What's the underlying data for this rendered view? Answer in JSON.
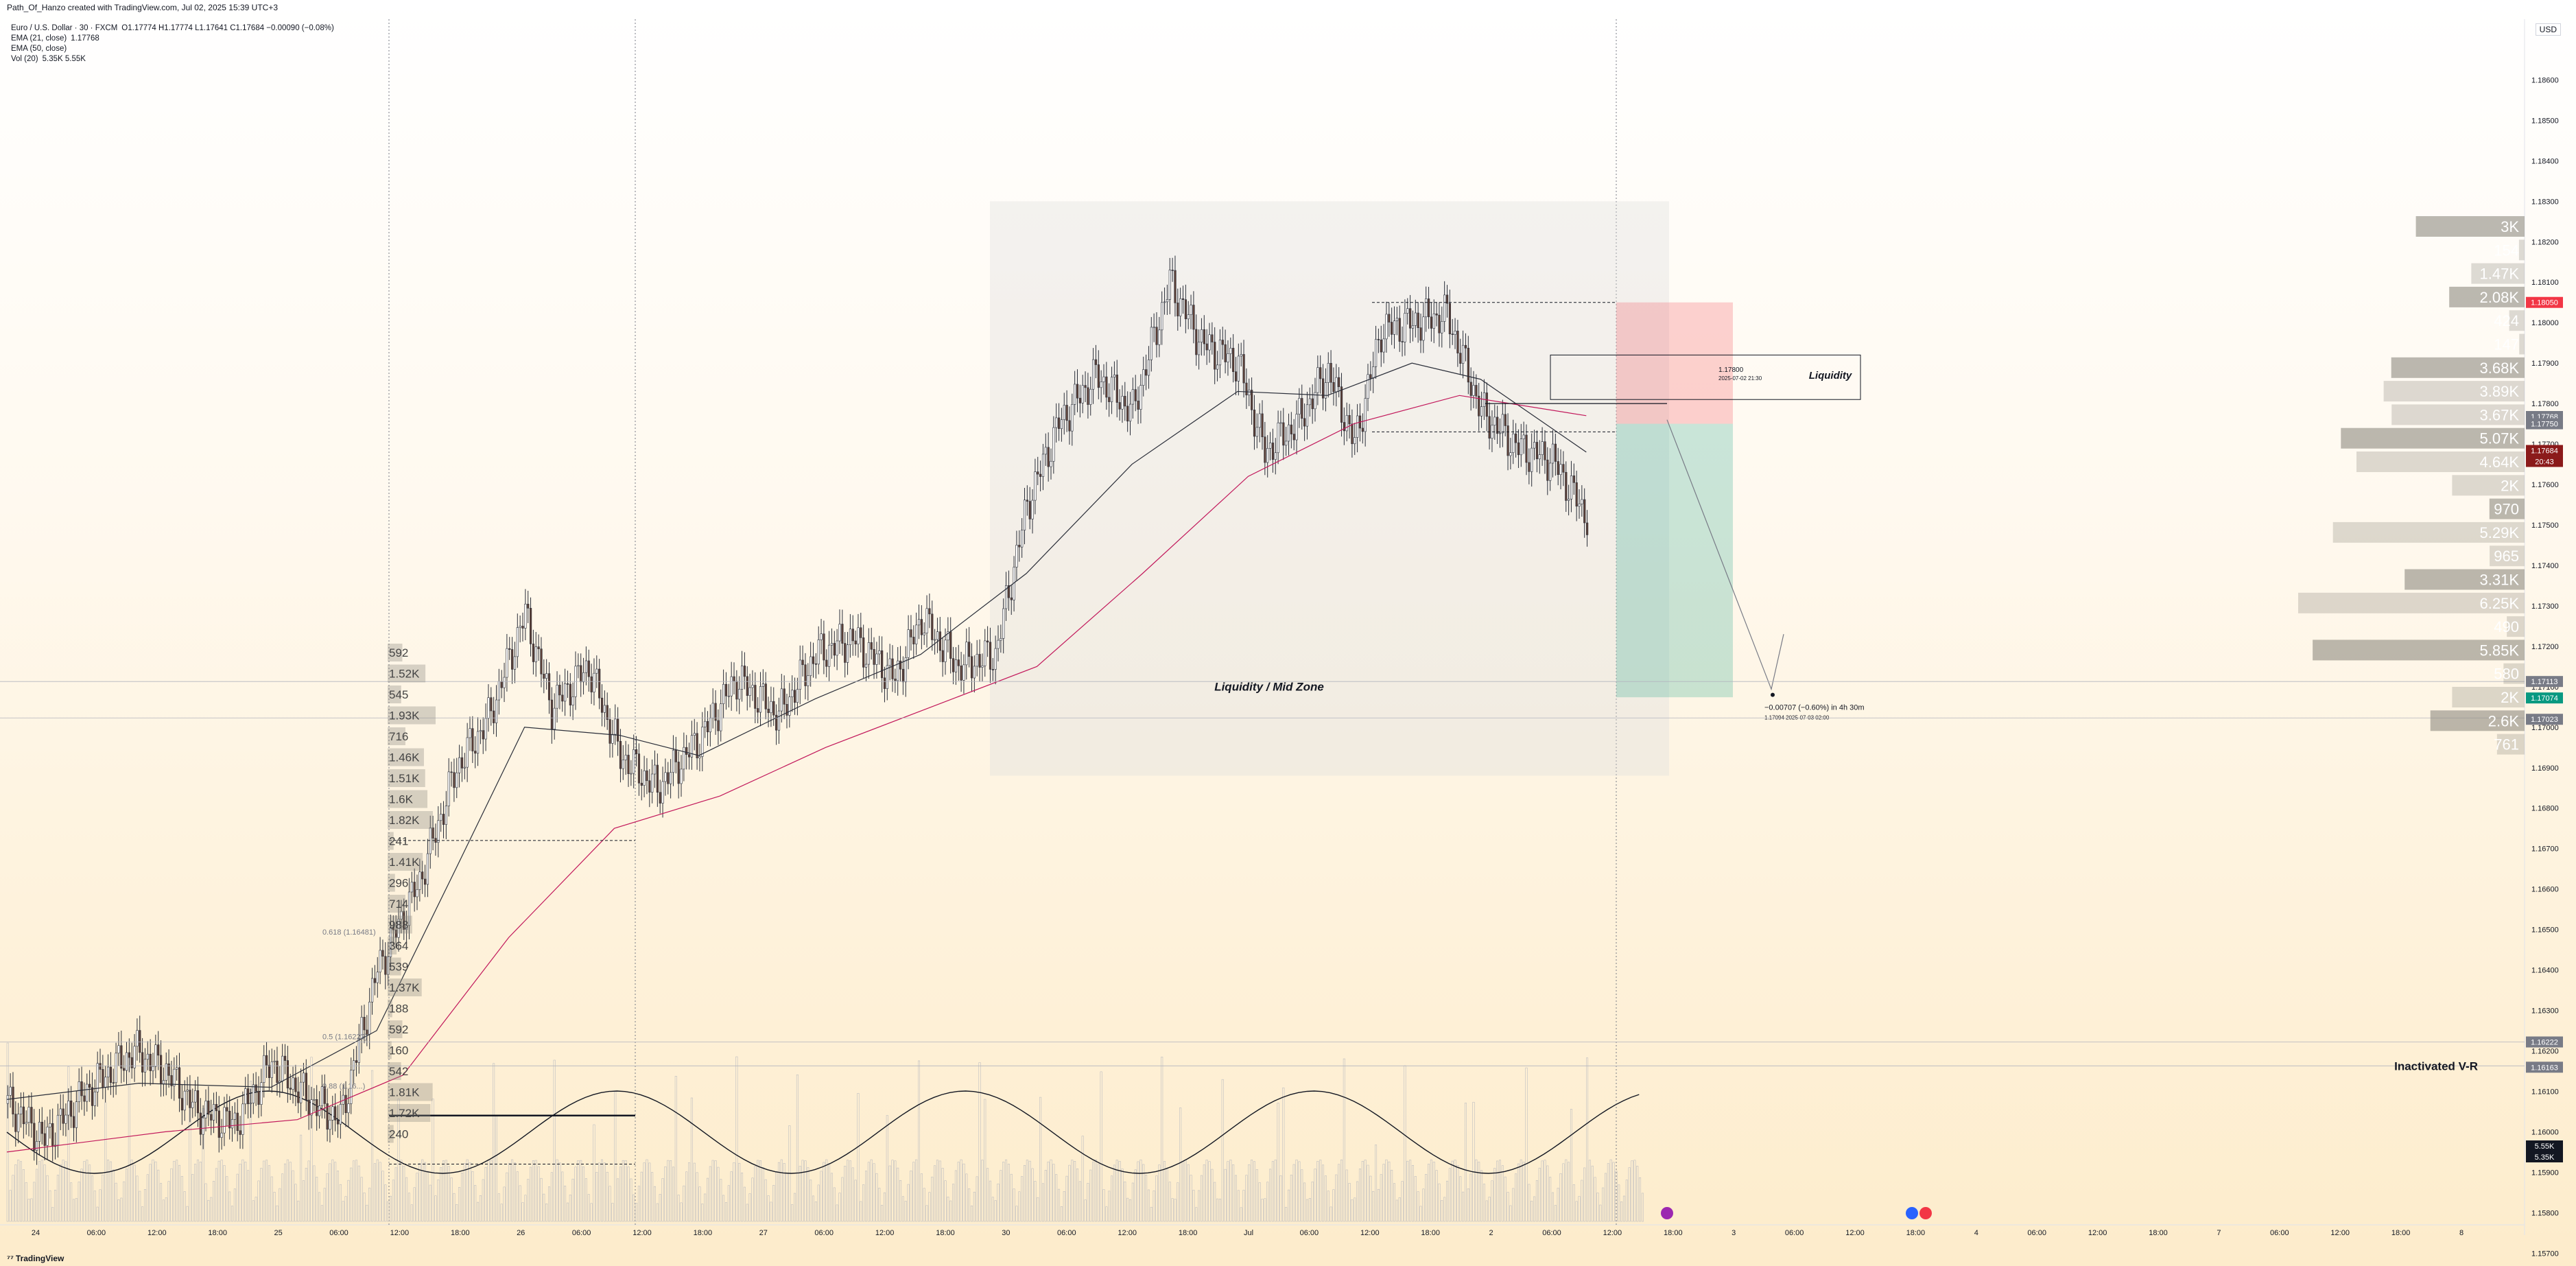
{
  "header": {
    "title": "Path_Of_Hanzo created with TradingView.com, Jul 02, 2025 15:39 UTC+3",
    "symbol": "Euro / U.S. Dollar · 30 · FXCM",
    "ohlc": "O1.17774 H1.17774 L1.17641 C1.17684 −0.00090 (−0.08%)",
    "ema21": "EMA (21, close)",
    "ema21_value": "1.17768",
    "ema50": "EMA (50, close)",
    "vol": "Vol (20)",
    "vol_value": "5.35K 5.55K",
    "currency": "USD",
    "brand": "TradingView"
  },
  "chart_data": {
    "type": "candlestick",
    "symbol": "EURUSD",
    "interval": "30",
    "ylim": [
      1.1577,
      1.1875
    ],
    "ylabels": [
      "1.18600",
      "1.18500",
      "1.18400",
      "1.18300",
      "1.18200",
      "1.18100",
      "1.18000",
      "1.17900",
      "1.17800",
      "1.17700",
      "1.17600",
      "1.17500",
      "1.17400",
      "1.17300",
      "1.17200",
      "1.17100",
      "1.17000",
      "1.16900",
      "1.16800",
      "1.16700",
      "1.16600",
      "1.16500",
      "1.16400",
      "1.16300",
      "1.16200",
      "1.16100",
      "1.16000",
      "1.15900",
      "1.15800",
      "1.15700"
    ],
    "xlabels": [
      "24",
      "06:00",
      "12:00",
      "18:00",
      "25",
      "06:00",
      "12:00",
      "18:00",
      "26",
      "06:00",
      "12:00",
      "18:00",
      "27",
      "06:00",
      "12:00",
      "18:00",
      "30",
      "06:00",
      "12:00",
      "18:00",
      "Jul",
      "06:00",
      "12:00",
      "18:00",
      "2",
      "06:00",
      "12:00",
      "18:00",
      "3",
      "06:00",
      "12:00",
      "18:00",
      "4",
      "06:00",
      "12:00",
      "18:00",
      "7",
      "06:00",
      "12:00",
      "18:00",
      "8"
    ],
    "price_path": [
      [
        0,
        1.1607
      ],
      [
        14,
        1.1598
      ],
      [
        30,
        1.161
      ],
      [
        48,
        1.162
      ],
      [
        60,
        1.1615
      ],
      [
        72,
        1.1605
      ],
      [
        86,
        1.1602
      ],
      [
        100,
        1.1617
      ],
      [
        114,
        1.1608
      ],
      [
        126,
        1.1603
      ],
      [
        140,
        1.164
      ],
      [
        156,
        1.1662
      ],
      [
        170,
        1.169
      ],
      [
        182,
        1.1702
      ],
      [
        196,
        1.1728
      ],
      [
        206,
        1.1705
      ],
      [
        220,
        1.1715
      ],
      [
        232,
        1.1693
      ],
      [
        246,
        1.1685
      ],
      [
        262,
        1.1697
      ],
      [
        276,
        1.1712
      ],
      [
        292,
        1.1703
      ],
      [
        306,
        1.1718
      ],
      [
        320,
        1.1722
      ],
      [
        336,
        1.1712
      ],
      [
        346,
        1.1727
      ],
      [
        360,
        1.1715
      ],
      [
        374,
        1.1718
      ],
      [
        386,
        1.1755
      ],
      [
        398,
        1.1775
      ],
      [
        412,
        1.1787
      ],
      [
        426,
        1.1778
      ],
      [
        440,
        1.181
      ],
      [
        452,
        1.1795
      ],
      [
        466,
        1.179
      ],
      [
        476,
        1.1768
      ],
      [
        488,
        1.1775
      ],
      [
        500,
        1.1788
      ],
      [
        510,
        1.177
      ],
      [
        520,
        1.1798
      ],
      [
        532,
        1.18
      ],
      [
        545,
        1.1802
      ],
      [
        558,
        1.1778
      ],
      [
        572,
        1.1769
      ],
      [
        585,
        1.1766
      ],
      [
        598,
        1.1752
      ]
    ],
    "ema21": [
      [
        0,
        1.1608
      ],
      [
        50,
        1.1612
      ],
      [
        100,
        1.1611
      ],
      [
        140,
        1.1625
      ],
      [
        170,
        1.1665
      ],
      [
        196,
        1.17
      ],
      [
        232,
        1.1698
      ],
      [
        262,
        1.1693
      ],
      [
        306,
        1.1707
      ],
      [
        346,
        1.1718
      ],
      [
        386,
        1.1738
      ],
      [
        426,
        1.1765
      ],
      [
        466,
        1.1783
      ],
      [
        500,
        1.1782
      ],
      [
        532,
        1.179
      ],
      [
        558,
        1.1786
      ],
      [
        598,
        1.1768
      ]
    ],
    "ema50": [
      [
        0,
        1.1595
      ],
      [
        60,
        1.16
      ],
      [
        110,
        1.1603
      ],
      [
        150,
        1.1614
      ],
      [
        190,
        1.1648
      ],
      [
        230,
        1.1675
      ],
      [
        270,
        1.1683
      ],
      [
        310,
        1.1695
      ],
      [
        350,
        1.1705
      ],
      [
        390,
        1.1715
      ],
      [
        430,
        1.1738
      ],
      [
        470,
        1.1762
      ],
      [
        510,
        1.1775
      ],
      [
        550,
        1.1782
      ],
      [
        598,
        1.1777
      ]
    ],
    "volume_profile_left": {
      "labels": [
        "592",
        "1.52K",
        "545",
        "1.93K",
        "716",
        "1.46K",
        "1.51K",
        "1.6K",
        "1.82K",
        "241",
        "1.41K",
        "296",
        "714",
        "988",
        "364",
        "539",
        "1.37K",
        "188",
        "592",
        "160",
        "542",
        "1.81K",
        "1.72K",
        "240"
      ],
      "values": [
        592,
        1520,
        545,
        1930,
        716,
        1460,
        1510,
        1600,
        1820,
        241,
        1410,
        296,
        714,
        988,
        364,
        539,
        1370,
        188,
        592,
        160,
        542,
        1810,
        1720,
        240
      ]
    },
    "volume_profile_right": {
      "labels": [
        "3K",
        "154",
        "1.47K",
        "2.08K",
        "424",
        "147",
        "3.68K",
        "3.89K",
        "3.67K",
        "5.07K",
        "4.64K",
        "2K",
        "970",
        "5.29K",
        "965",
        "3.31K",
        "6.25K",
        "490",
        "5.85K",
        "580",
        "2K",
        "2.6K",
        "761"
      ],
      "values": [
        3000,
        154,
        1470,
        2080,
        424,
        147,
        3680,
        3890,
        3670,
        5070,
        4640,
        2000,
        970,
        5290,
        965,
        3310,
        6250,
        490,
        5850,
        580,
        2000,
        2600,
        761
      ]
    },
    "annotations": {
      "zone_label": "Liquidity / Mid Zone",
      "liquidity_label": "Liquidity",
      "inactivated": "Inactivated  V-R",
      "fib_618": "0.618 (1.16481)",
      "fib_050": "0.5 (1.16222)",
      "fib_088": "0.88 (1.16...)",
      "entry_price": "1.17800",
      "entry_time": "2025-07-02 21:30",
      "target_change": "−0.00707 (−0.60%) in 4h 30m",
      "target_price": "1.17094",
      "target_time": "2025-07-03  02:00"
    },
    "price_tags": [
      {
        "value": "1.18050",
        "color": "#f23645"
      },
      {
        "value": "1.17768",
        "color": "#787b86"
      },
      {
        "value": "1.17750",
        "color": "#787b86"
      },
      {
        "value": "1.17684",
        "color": "#8b1a1a"
      },
      {
        "value": "20:43",
        "color": "#8b1a1a"
      },
      {
        "value": "1.17113",
        "color": "#787b86"
      },
      {
        "value": "1.17074",
        "color": "#089981"
      },
      {
        "value": "1.17023",
        "color": "#787b86"
      },
      {
        "value": "1.16222",
        "color": "#787b86"
      },
      {
        "value": "1.16163",
        "color": "#787b86"
      },
      {
        "value": "5.55K",
        "color": "#131722"
      },
      {
        "value": "5.35K",
        "color": "#131722"
      }
    ]
  }
}
